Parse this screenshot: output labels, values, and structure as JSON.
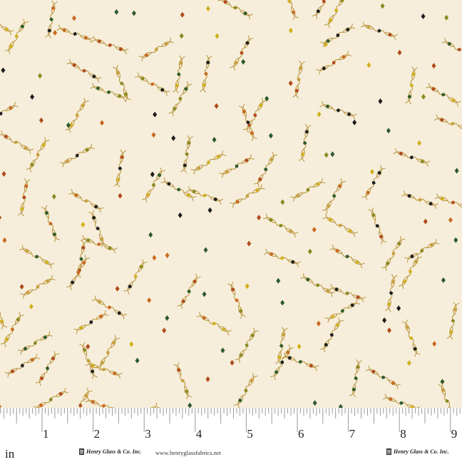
{
  "fabric": {
    "background_color": "#f6eedb",
    "motif_colors": [
      "#c8a040",
      "#c86a20",
      "#d1b01e",
      "#8a8a20",
      "#1c1c1c",
      "#2d5a2a",
      "#b04a1a"
    ],
    "motifs": [
      "beaded-chain",
      "diamond-dot"
    ]
  },
  "ruler": {
    "unit": "in",
    "numbers": [
      "1",
      "2",
      "3",
      "4",
      "5",
      "6",
      "7",
      "8",
      "9"
    ]
  },
  "footer": {
    "brand_left": "Henry Glass & Co. Inc.",
    "url": "www.henryglassfabrics.net",
    "brand_right": "Henry Glass & Co. Inc."
  }
}
